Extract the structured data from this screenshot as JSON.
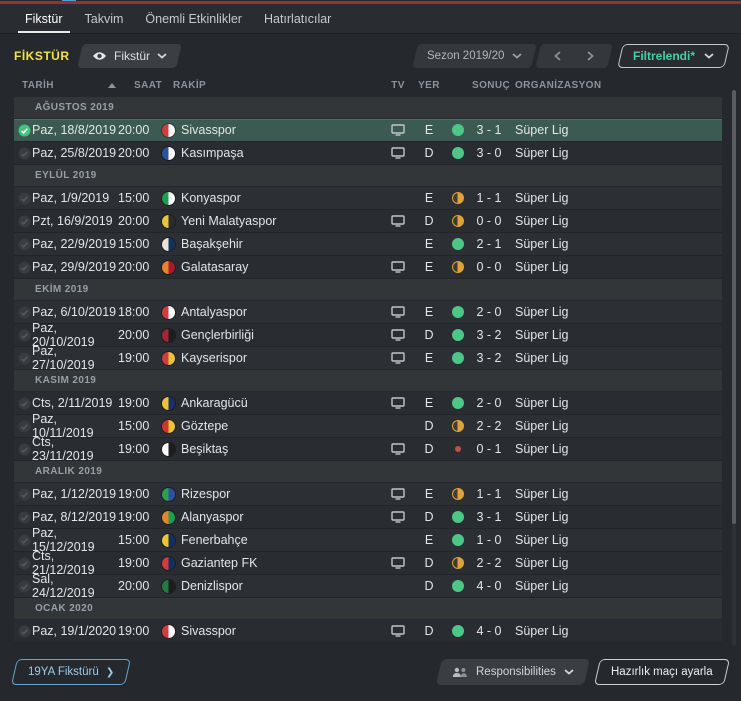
{
  "tabs": {
    "items": [
      {
        "label": "Fikstür",
        "active": true
      },
      {
        "label": "Takvim",
        "active": false
      },
      {
        "label": "Önemli Etkinlikler",
        "active": false
      },
      {
        "label": "Hatırlatıcılar",
        "active": false
      }
    ]
  },
  "toolbar": {
    "title": "FİKSTÜR",
    "view_dropdown": "Fikstür",
    "season_dropdown": "Sezon 2019/20",
    "filter_button": "Filtrelendi*"
  },
  "table": {
    "columns": {
      "date": "TARİH",
      "time": "SAAT",
      "opponent": "RAKİP",
      "tv": "TV",
      "venue": "YER",
      "result": "SONUÇ",
      "organization": "ORGANİZASYON"
    },
    "groups": [
      {
        "month": "AĞUSTOS 2019",
        "rows": [
          {
            "date": "Paz, 18/8/2019",
            "time": "20:00",
            "team": "Sivasspor",
            "tv": true,
            "venue": "E",
            "result": "win",
            "score": "3 - 1",
            "comp": "Süper Lig",
            "selected": true,
            "logo": [
              "#d23c3c",
              "#ffffff"
            ]
          },
          {
            "date": "Paz, 25/8/2019",
            "time": "20:00",
            "team": "Kasımpaşa",
            "tv": true,
            "venue": "D",
            "result": "win",
            "score": "3 - 0",
            "comp": "Süper Lig",
            "selected": false,
            "logo": [
              "#2a52a0",
              "#ffffff"
            ]
          }
        ]
      },
      {
        "month": "EYLÜL 2019",
        "rows": [
          {
            "date": "Paz, 1/9/2019",
            "time": "15:00",
            "team": "Konyaspor",
            "tv": false,
            "venue": "E",
            "result": "draw",
            "score": "1 - 1",
            "comp": "Süper Lig",
            "selected": false,
            "logo": [
              "#1d9e50",
              "#ffffff"
            ]
          },
          {
            "date": "Pzt, 16/9/2019",
            "time": "20:00",
            "team": "Yeni Malatyaspor",
            "tv": true,
            "venue": "D",
            "result": "draw",
            "score": "0 - 0",
            "comp": "Süper Lig",
            "selected": false,
            "logo": [
              "#e7c43b",
              "#2b2b2b"
            ]
          },
          {
            "date": "Paz, 22/9/2019",
            "time": "15:00",
            "team": "Başakşehir",
            "tv": false,
            "venue": "E",
            "result": "win",
            "score": "2 - 1",
            "comp": "Süper Lig",
            "selected": false,
            "logo": [
              "#e8e4da",
              "#16305e"
            ]
          },
          {
            "date": "Paz, 29/9/2019",
            "time": "20:00",
            "team": "Galatasaray",
            "tv": true,
            "venue": "E",
            "result": "draw",
            "score": "0 - 0",
            "comp": "Süper Lig",
            "selected": false,
            "logo": [
              "#e5842a",
              "#a61b2b"
            ]
          }
        ]
      },
      {
        "month": "EKİM 2019",
        "rows": [
          {
            "date": "Paz, 6/10/2019",
            "time": "18:00",
            "team": "Antalyaspor",
            "tv": true,
            "venue": "E",
            "result": "win",
            "score": "2 - 0",
            "comp": "Süper Lig",
            "selected": false,
            "logo": [
              "#d23c3c",
              "#ffffff"
            ]
          },
          {
            "date": "Paz, 20/10/2019",
            "time": "20:00",
            "team": "Gençlerbirliği",
            "tv": true,
            "venue": "D",
            "result": "win",
            "score": "3 - 2",
            "comp": "Süper Lig",
            "selected": false,
            "logo": [
              "#a82333",
              "#1d1d1d"
            ]
          },
          {
            "date": "Paz, 27/10/2019",
            "time": "19:00",
            "team": "Kayserispor",
            "tv": true,
            "venue": "E",
            "result": "win",
            "score": "3 - 2",
            "comp": "Süper Lig",
            "selected": false,
            "logo": [
              "#d23c3c",
              "#e7c43b"
            ]
          }
        ]
      },
      {
        "month": "KASIM 2019",
        "rows": [
          {
            "date": "Cts, 2/11/2019",
            "time": "19:00",
            "team": "Ankaragücü",
            "tv": true,
            "venue": "E",
            "result": "win",
            "score": "2 - 0",
            "comp": "Süper Lig",
            "selected": false,
            "logo": [
              "#f0c335",
              "#1d2f6b"
            ]
          },
          {
            "date": "Paz, 10/11/2019",
            "time": "15:00",
            "team": "Göztepe",
            "tv": false,
            "venue": "D",
            "result": "draw",
            "score": "2 - 2",
            "comp": "Süper Lig",
            "selected": false,
            "logo": [
              "#d0342c",
              "#f0c335"
            ]
          },
          {
            "date": "Cts, 23/11/2019",
            "time": "19:00",
            "team": "Beşiktaş",
            "tv": true,
            "venue": "D",
            "result": "loss",
            "score": "0 - 1",
            "comp": "Süper Lig",
            "selected": false,
            "logo": [
              "#ffffff",
              "#1d1d1d"
            ]
          }
        ]
      },
      {
        "month": "ARALIK 2019",
        "rows": [
          {
            "date": "Paz, 1/12/2019",
            "time": "19:00",
            "team": "Rizespor",
            "tv": true,
            "venue": "E",
            "result": "draw",
            "score": "1 - 1",
            "comp": "Süper Lig",
            "selected": false,
            "logo": [
              "#2e9e50",
              "#2a52a0"
            ]
          },
          {
            "date": "Paz, 8/12/2019",
            "time": "19:00",
            "team": "Alanyaspor",
            "tv": true,
            "venue": "D",
            "result": "win",
            "score": "3 - 1",
            "comp": "Süper Lig",
            "selected": false,
            "logo": [
              "#e5842a",
              "#1d9e50"
            ]
          },
          {
            "date": "Paz, 15/12/2019",
            "time": "15:00",
            "team": "Fenerbahçe",
            "tv": false,
            "venue": "E",
            "result": "win",
            "score": "1 - 0",
            "comp": "Süper Lig",
            "selected": false,
            "logo": [
              "#f0c335",
              "#16305e"
            ]
          },
          {
            "date": "Cts, 21/12/2019",
            "time": "19:00",
            "team": "Gaziantep FK",
            "tv": true,
            "venue": "D",
            "result": "draw",
            "score": "2 - 2",
            "comp": "Süper Lig",
            "selected": false,
            "logo": [
              "#d23c3c",
              "#16305e"
            ]
          },
          {
            "date": "Sal, 24/12/2019",
            "time": "20:00",
            "team": "Denizlispor",
            "tv": false,
            "venue": "D",
            "result": "win",
            "score": "4 - 0",
            "comp": "Süper Lig",
            "selected": false,
            "logo": [
              "#1d7e40",
              "#1d1d1d"
            ]
          }
        ]
      },
      {
        "month": "OCAK 2020",
        "rows": [
          {
            "date": "Paz, 19/1/2020",
            "time": "19:00",
            "team": "Sivasspor",
            "tv": true,
            "venue": "D",
            "result": "win",
            "score": "4 - 0",
            "comp": "Süper Lig",
            "selected": false,
            "logo": [
              "#d23c3c",
              "#ffffff"
            ]
          }
        ]
      }
    ]
  },
  "footer": {
    "youth_fixtures_button": "19YA Fikstürü",
    "responsibilities_button": "Responsibilities",
    "friendly_button": "Hazırlık maçı ayarla"
  },
  "colors": {
    "accent_yellow": "#f2e43d",
    "selected_row": "#3b5b52",
    "win": "#4cc788",
    "draw": "#e0a23a",
    "loss": "#c1504d",
    "filter_teal": "#3fd3a4",
    "top_bar_red": "#a32c2a"
  }
}
